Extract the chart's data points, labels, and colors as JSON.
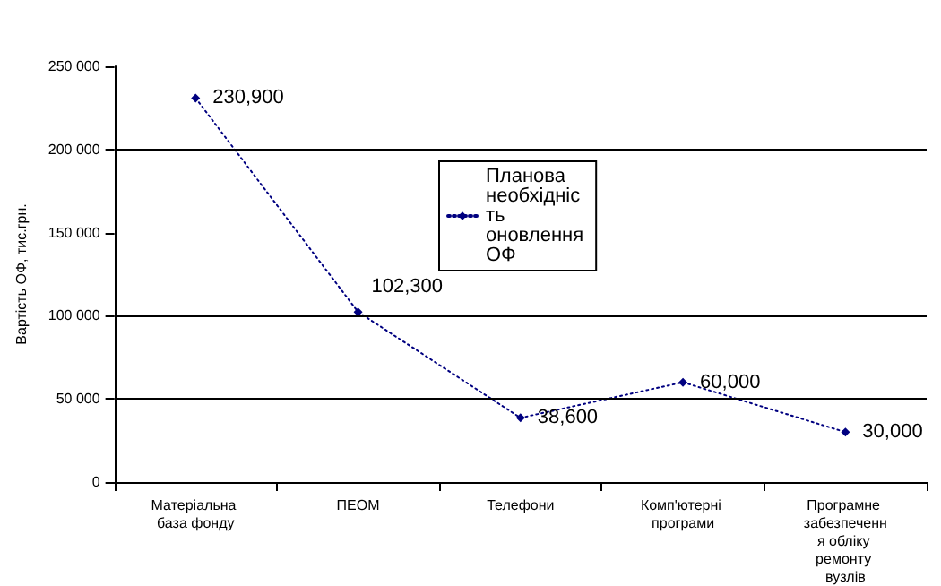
{
  "chart_data": {
    "type": "line",
    "ylabel": "Вартість ОФ, тис.грн.",
    "categories": [
      "Матеріальна база фонду",
      "ПЕОМ",
      "Телефони",
      "Комп'ютерні програми",
      "Програмне забезпечення обліку ремонту вузлів"
    ],
    "series": [
      {
        "name": "Планова необхідність оновлення ОФ",
        "color": "#000080",
        "values": [
          230900,
          102300,
          38600,
          60000,
          30000
        ],
        "value_labels": [
          "230,900",
          "102,300",
          "38,600",
          "60,000",
          "30,000"
        ]
      }
    ],
    "ylim": [
      0,
      250000
    ],
    "yticks": [
      {
        "value": 0,
        "label": "0"
      },
      {
        "value": 50000,
        "label": "50 000"
      },
      {
        "value": 100000,
        "label": "100 000"
      },
      {
        "value": 150000,
        "label": "150 000"
      },
      {
        "value": 200000,
        "label": "200 000"
      },
      {
        "value": 250000,
        "label": "250 000"
      }
    ],
    "ref_lines": [
      {
        "axis": "y",
        "value": 50000,
        "color": "#000000"
      },
      {
        "axis": "y",
        "value": 100000,
        "color": "#000000"
      },
      {
        "axis": "y",
        "value": 200000,
        "color": "#000000"
      }
    ],
    "legend": "top",
    "marker": "diamond",
    "line_style": "dotted",
    "grid": false
  }
}
